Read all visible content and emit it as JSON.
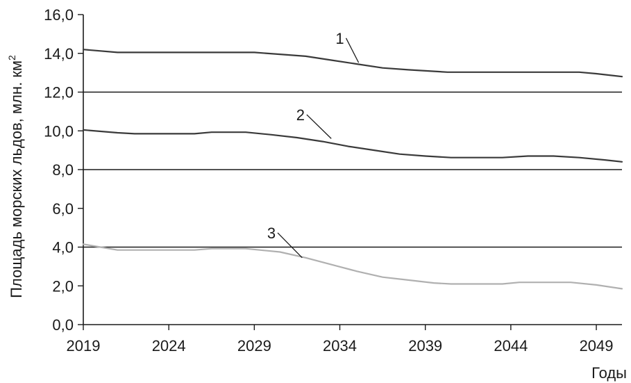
{
  "chart_data": {
    "type": "line",
    "xlabel": "Годы",
    "ylabel": "Площадь морских льдов, млн. км",
    "ylabel_superscript": "2",
    "xlim": [
      2019,
      2050.5
    ],
    "ylim": [
      0,
      16
    ],
    "x_ticks": [
      2019,
      2024,
      2029,
      2034,
      2039,
      2044,
      2049
    ],
    "y_ticks": [
      0,
      2,
      4,
      6,
      8,
      10,
      12,
      14,
      16
    ],
    "x_tick_labels": [
      "2019",
      "2024",
      "2029",
      "2034",
      "2039",
      "2044",
      "2049"
    ],
    "y_tick_labels": [
      "0,0",
      "2,0",
      "4,0",
      "6,0",
      "8,0",
      "10,0",
      "12,0",
      "14,0",
      "16,0"
    ],
    "grid_lines_y": [
      4,
      8,
      12
    ],
    "series": [
      {
        "name": "1",
        "color": "#3a3a3a",
        "x": [
          2019,
          2021,
          2023,
          2025,
          2027,
          2029,
          2030.5,
          2032,
          2033.5,
          2035,
          2036.5,
          2038,
          2040.3,
          2042,
          2044,
          2046,
          2048,
          2049,
          2050.5
        ],
        "y": [
          14.2,
          14.05,
          14.05,
          14.05,
          14.05,
          14.05,
          13.95,
          13.85,
          13.65,
          13.45,
          13.25,
          13.15,
          13.03,
          13.03,
          13.03,
          13.03,
          13.03,
          12.95,
          12.8
        ]
      },
      {
        "name": "2",
        "color": "#3a3a3a",
        "x": [
          2019,
          2021,
          2022,
          2024,
          2025.5,
          2026.5,
          2028.5,
          2030,
          2031.5,
          2033,
          2034.5,
          2036,
          2037.5,
          2039,
          2040.5,
          2042,
          2043.5,
          2045,
          2046.5,
          2048,
          2049.5,
          2050.5
        ],
        "y": [
          10.05,
          9.9,
          9.85,
          9.85,
          9.85,
          9.93,
          9.93,
          9.8,
          9.65,
          9.45,
          9.2,
          9.0,
          8.8,
          8.7,
          8.62,
          8.62,
          8.62,
          8.7,
          8.7,
          8.62,
          8.5,
          8.4
        ]
      },
      {
        "name": "3",
        "color": "#b0b0b0",
        "x": [
          2019,
          2020,
          2021,
          2022,
          2024,
          2025.5,
          2026.5,
          2028.5,
          2030.5,
          2032,
          2033.5,
          2035,
          2036.5,
          2038,
          2039.5,
          2040.5,
          2042,
          2043.5,
          2044.5,
          2046,
          2047.5,
          2049,
          2050.5
        ],
        "y": [
          4.15,
          4.0,
          3.85,
          3.85,
          3.85,
          3.85,
          3.92,
          3.92,
          3.75,
          3.45,
          3.1,
          2.75,
          2.45,
          2.3,
          2.15,
          2.1,
          2.1,
          2.1,
          2.18,
          2.18,
          2.18,
          2.05,
          1.85
        ]
      }
    ],
    "annotations": [
      {
        "text": "1",
        "series": 0,
        "label_x": 2034,
        "label_y": 14.5,
        "point_x": 2035.1,
        "point_y": 13.52
      },
      {
        "text": "2",
        "series": 1,
        "label_x": 2031.7,
        "label_y": 10.55,
        "point_x": 2033.5,
        "point_y": 9.6
      },
      {
        "text": "3",
        "series": 2,
        "label_x": 2030,
        "label_y": 4.45,
        "point_x": 2031.8,
        "point_y": 3.45
      }
    ]
  }
}
